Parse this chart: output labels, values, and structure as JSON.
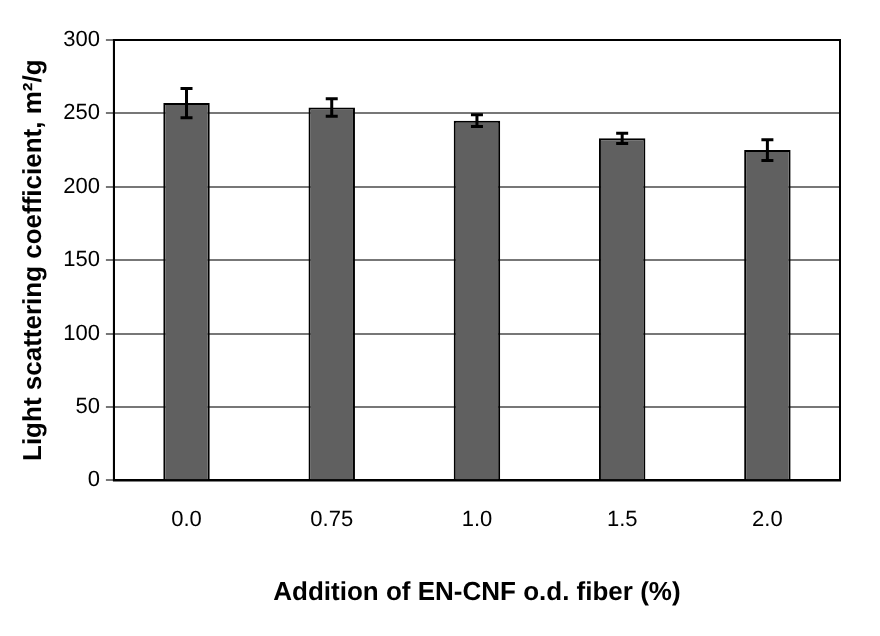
{
  "chart_data": {
    "type": "bar",
    "xlabel": "Addition of EN-CNF o.d. fiber (%)",
    "ylabel": "Light scattering coefficient, m²/g",
    "categories": [
      "0.0",
      "0.75",
      "1.0",
      "1.5",
      "2.0"
    ],
    "values": [
      257,
      254,
      245,
      233,
      225
    ],
    "errors": [
      10,
      6,
      4,
      3.5,
      7
    ],
    "color": "#606060",
    "ylim": [
      0,
      300
    ],
    "yticks": [
      0,
      50,
      100,
      150,
      200,
      250,
      300
    ],
    "grid": "y",
    "legend": false
  }
}
